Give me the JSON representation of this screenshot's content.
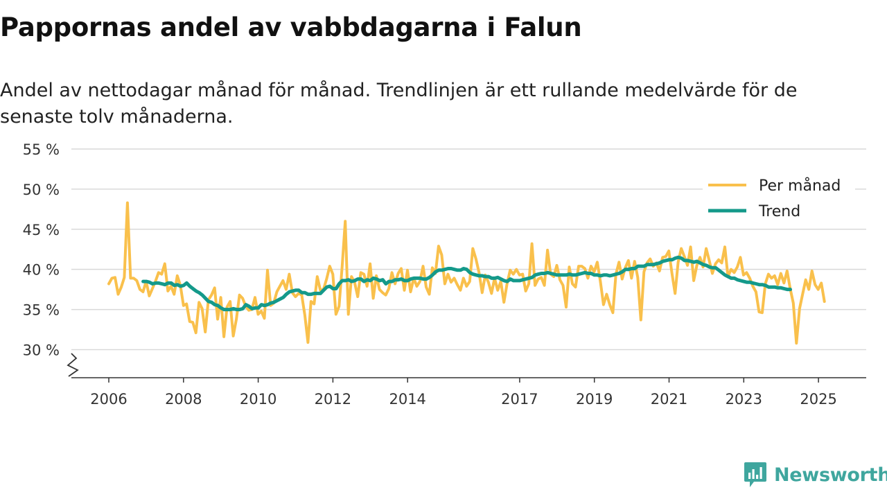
{
  "header": {
    "title": "Pappornas andel av vabbdagarna i Falun",
    "subtitle": "Andel av nettodagar månad för månad. Trendlinjen är ett rullande medelvärde för de senaste tolv månaderna."
  },
  "brand": {
    "name": "Newsworthy",
    "icon": "newsworthy-logo-icon"
  },
  "colors": {
    "monthly": "#f9c04c",
    "trend": "#14998a",
    "grid": "#d9d9d9",
    "axis": "#333333"
  },
  "chart_data": {
    "type": "line",
    "title": "Pappornas andel av vabbdagarna i Falun",
    "xlabel": "",
    "ylabel": "",
    "ylim": [
      26.5,
      55
    ],
    "xlim": [
      2006.0,
      2025.78
    ],
    "y_ticks": [
      30,
      35,
      40,
      45,
      50,
      55
    ],
    "y_tick_labels": [
      "30 %",
      "35 %",
      "40 %",
      "45 %",
      "50 %",
      "55 %"
    ],
    "x_ticks": [
      2006,
      2008,
      2010,
      2012,
      2014,
      2017,
      2019,
      2021,
      2023,
      2025
    ],
    "x_tick_labels": [
      "2006",
      "2008",
      "2010",
      "2012",
      "2014",
      "2017",
      "2019",
      "2021",
      "2023",
      "2025"
    ],
    "grid": true,
    "axis_break": true,
    "legend": {
      "position": "top-right",
      "entries": [
        "Per månad",
        "Trend"
      ]
    },
    "series": [
      {
        "name": "Per månad",
        "x_start": 2006.0,
        "step": 0.0833,
        "values": [
          38.2,
          38.9,
          39.0,
          36.9,
          37.8,
          39.0,
          48.3,
          38.9,
          38.9,
          38.6,
          37.5,
          37.2,
          38.5,
          36.7,
          37.6,
          38.5,
          39.6,
          39.4,
          40.7,
          37.3,
          37.9,
          36.9,
          39.2,
          38.0,
          35.5,
          35.7,
          33.5,
          33.4,
          32.1,
          35.9,
          35.1,
          32.2,
          36.2,
          36.8,
          37.7,
          33.8,
          36.5,
          31.6,
          35.3,
          36.0,
          31.7,
          33.8,
          36.8,
          36.4,
          35.4,
          34.9,
          35.0,
          36.5,
          34.4,
          34.8,
          33.9,
          39.9,
          35.5,
          35.8,
          37.2,
          37.9,
          38.6,
          37.5,
          39.4,
          37.1,
          36.6,
          37.0,
          36.8,
          34.3,
          30.9,
          36.0,
          35.7,
          39.1,
          37.4,
          37.5,
          38.8,
          40.4,
          39.4,
          34.4,
          35.4,
          40.3,
          46.0,
          34.4,
          39.1,
          38.4,
          36.6,
          39.6,
          39.4,
          37.9,
          40.7,
          36.4,
          39.2,
          37.5,
          37.1,
          36.8,
          37.6,
          39.6,
          38.2,
          39.5,
          40.1,
          37.4,
          39.9,
          37.2,
          38.9,
          37.9,
          38.5,
          40.4,
          37.8,
          36.9,
          40.2,
          39.5,
          42.9,
          41.8,
          38.2,
          39.4,
          38.4,
          38.9,
          38.1,
          37.4,
          38.9,
          37.9,
          38.5,
          42.6,
          41.3,
          39.6,
          37.1,
          39.3,
          38.4,
          37.0,
          38.9,
          37.4,
          38.5,
          35.9,
          38.2,
          39.9,
          39.4,
          40.0,
          39.3,
          39.4,
          37.3,
          38.2,
          43.2,
          38.0,
          38.8,
          39.0,
          38.0,
          42.4,
          39.4,
          39.1,
          40.5,
          38.7,
          38.0,
          35.3,
          40.3,
          38.2,
          37.8,
          40.4,
          40.4,
          40.1,
          38.9,
          40.4,
          39.7,
          40.9,
          38.5,
          35.6,
          36.9,
          35.6,
          34.6,
          39.4,
          40.9,
          38.8,
          40.2,
          41.1,
          38.9,
          41.0,
          39.0,
          33.7,
          39.7,
          40.8,
          41.3,
          40.4,
          40.8,
          39.8,
          41.5,
          41.6,
          42.3,
          39.5,
          37.0,
          40.9,
          42.6,
          41.6,
          40.5,
          42.8,
          38.6,
          40.5,
          41.5,
          40.3,
          42.6,
          41.1,
          39.5,
          40.7,
          41.2,
          40.8,
          42.8,
          39.1,
          40.0,
          39.6,
          40.3,
          41.5,
          39.3,
          39.6,
          38.9,
          37.9,
          37.2,
          34.7,
          34.6,
          38.2,
          39.4,
          38.9,
          39.2,
          38.1,
          39.5,
          38.3,
          39.8,
          37.6,
          35.8,
          30.8,
          35.1,
          36.9,
          38.7,
          37.5,
          39.8,
          38.1,
          37.5,
          38.3,
          36.0
        ]
      },
      {
        "name": "Trend",
        "x_start": 2006.92,
        "step": 0.0833,
        "values": [
          38.5,
          38.5,
          38.4,
          38.2,
          38.3,
          38.3,
          38.2,
          38.1,
          38.3,
          38.3,
          38.0,
          38.1,
          37.9,
          38.0,
          38.3,
          37.9,
          37.6,
          37.3,
          37.1,
          36.8,
          36.4,
          36.0,
          35.9,
          35.6,
          35.5,
          35.2,
          35.0,
          35.0,
          35.0,
          35.1,
          35.0,
          35.0,
          35.1,
          35.6,
          35.4,
          35.1,
          35.2,
          35.2,
          35.6,
          35.5,
          35.6,
          35.8,
          35.9,
          36.1,
          36.3,
          36.5,
          36.9,
          37.2,
          37.3,
          37.4,
          37.4,
          37.1,
          37.1,
          36.9,
          36.9,
          37.0,
          37.0,
          37.0,
          37.4,
          37.8,
          37.9,
          37.6,
          37.6,
          38.2,
          38.6,
          38.6,
          38.7,
          38.5,
          38.6,
          38.8,
          38.8,
          38.5,
          38.7,
          38.6,
          38.9,
          38.8,
          38.6,
          38.7,
          38.2,
          38.5,
          38.5,
          38.7,
          38.7,
          38.8,
          38.6,
          38.6,
          38.8,
          38.9,
          38.9,
          38.9,
          38.8,
          38.8,
          39.0,
          39.3,
          39.7,
          39.9,
          39.9,
          40.0,
          40.1,
          40.1,
          40.0,
          39.9,
          39.9,
          40.1,
          40.0,
          39.6,
          39.4,
          39.3,
          39.2,
          39.2,
          39.1,
          39.1,
          38.9,
          38.9,
          39.0,
          38.8,
          38.6,
          38.5,
          38.8,
          38.6,
          38.6,
          38.6,
          38.7,
          38.8,
          38.9,
          39.0,
          39.3,
          39.4,
          39.5,
          39.5,
          39.6,
          39.5,
          39.4,
          39.3,
          39.3,
          39.3,
          39.3,
          39.4,
          39.3,
          39.3,
          39.4,
          39.5,
          39.6,
          39.5,
          39.5,
          39.3,
          39.3,
          39.2,
          39.3,
          39.3,
          39.2,
          39.3,
          39.4,
          39.5,
          39.7,
          40.0,
          40.0,
          40.1,
          40.1,
          40.4,
          40.4,
          40.4,
          40.6,
          40.6,
          40.6,
          40.7,
          40.8,
          41.0,
          41.1,
          41.2,
          41.2,
          41.4,
          41.5,
          41.4,
          41.1,
          41.1,
          41.0,
          40.9,
          41.0,
          40.8,
          40.6,
          40.5,
          40.3,
          40.2,
          40.2,
          39.9,
          39.6,
          39.3,
          39.1,
          38.9,
          38.9,
          38.7,
          38.6,
          38.5,
          38.4,
          38.4,
          38.3,
          38.2,
          38.1,
          38.1,
          38.0,
          37.8,
          37.8,
          37.8,
          37.7,
          37.7,
          37.6,
          37.5,
          37.5
        ]
      }
    ]
  }
}
